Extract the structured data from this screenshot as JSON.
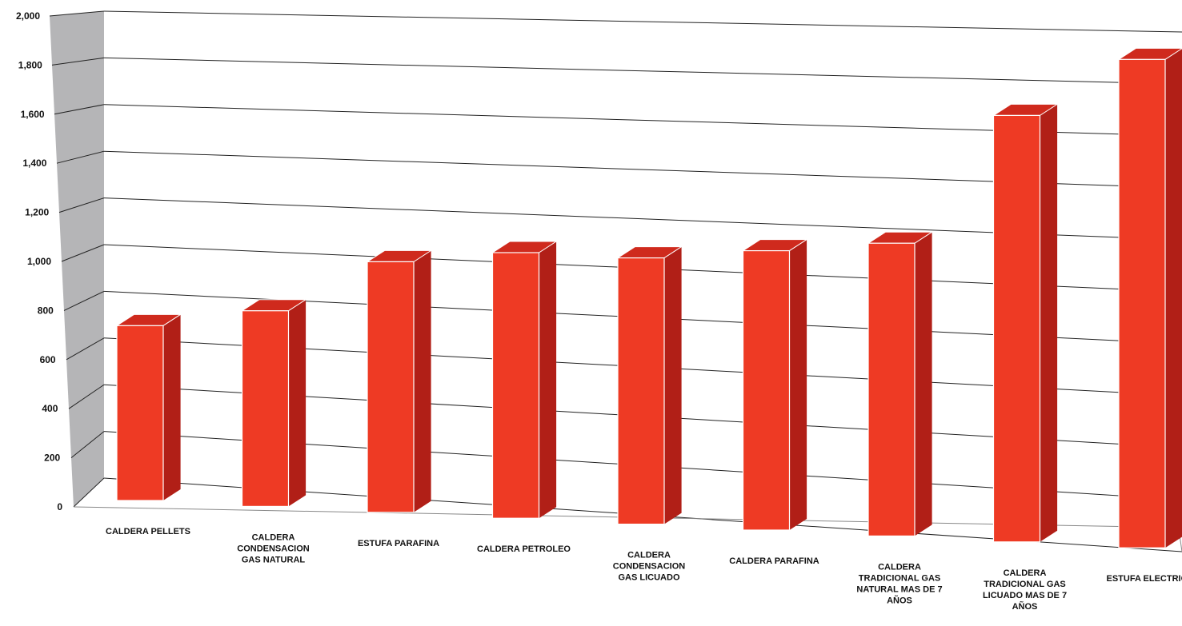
{
  "chart_data": {
    "type": "bar",
    "title": "",
    "xlabel": "",
    "ylabel": "",
    "ylim": [
      0,
      2000
    ],
    "yticks": [
      "0",
      "200",
      "400",
      "600",
      "800",
      "1,000",
      "1,200",
      "1,400",
      "1,600",
      "1,800",
      "2,000"
    ],
    "grid": true,
    "legend": "none",
    "categories": [
      [
        "CALDERA PELLETS"
      ],
      [
        "CALDERA",
        "CONDENSACION",
        "GAS NATURAL"
      ],
      [
        "ESTUFA PARAFINA"
      ],
      [
        "CALDERA PETROLEO"
      ],
      [
        "CALDERA",
        "CONDENSACION",
        "GAS LICUADO"
      ],
      [
        "CALDERA PARAFINA"
      ],
      [
        "CALDERA",
        "TRADICIONAL GAS",
        "NATURAL MAS DE 7",
        "AÑOS"
      ],
      [
        "CALDERA",
        "TRADICIONAL GAS",
        "LICUADO MAS DE 7",
        "AÑOS"
      ],
      [
        "ESTUFA ELECTRICA"
      ]
    ],
    "values": [
      690,
      780,
      1010,
      1070,
      1070,
      1120,
      1170,
      1690,
      1920
    ],
    "colors": {
      "bar_front": "#ee3a24",
      "bar_side": "#b11f17",
      "bar_top": "#cf2a1d",
      "wall": "#b5b5b7",
      "grid": "#222222"
    }
  }
}
